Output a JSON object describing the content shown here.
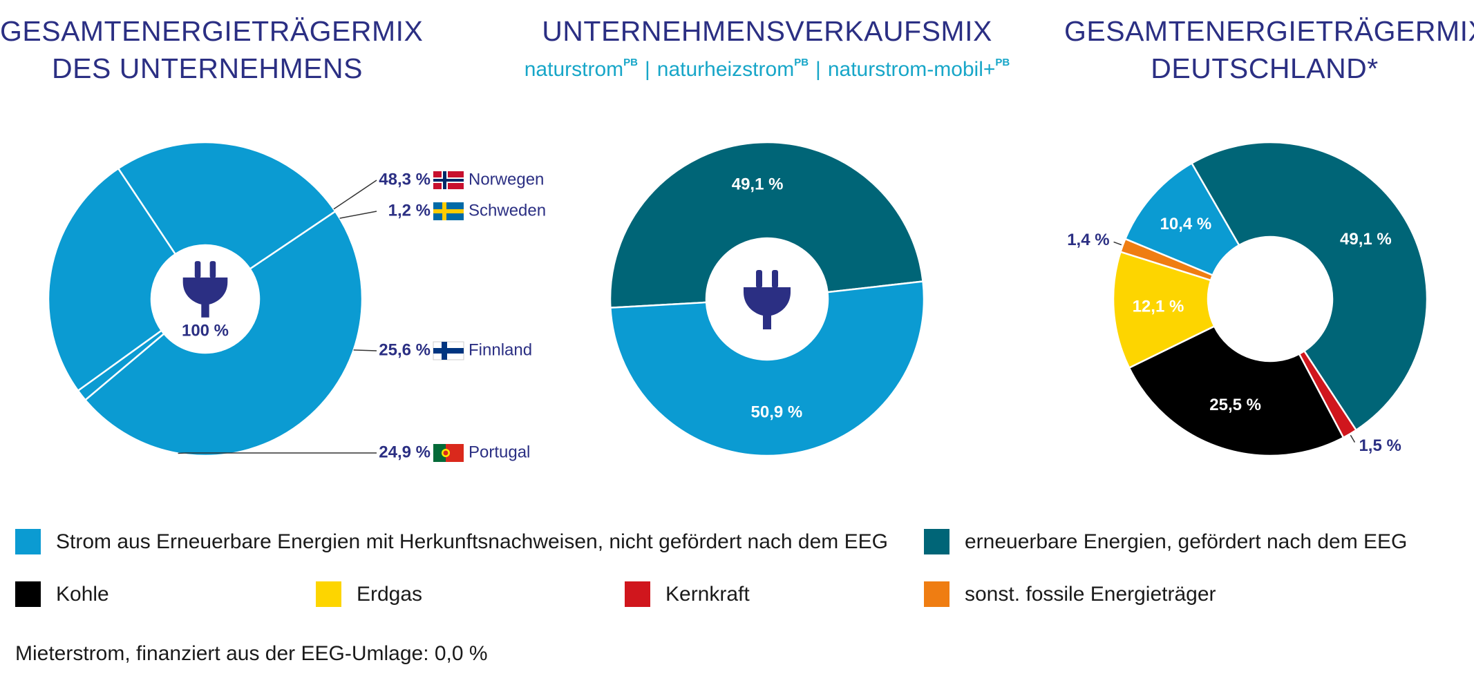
{
  "titles": {
    "left_line1": "GESAMTENERGIETRÄGERMIX",
    "left_line2": "DES UNTERNEHMENS",
    "middle": "UNTERNEHMENSVERKAUFSMIX",
    "middle_sub1": "naturstrom",
    "middle_sub2": "naturheizstrom",
    "middle_sub3": "naturstrom-mobil+",
    "middle_sup": "PB",
    "middle_sep": "|",
    "right_line1": "GESAMTENERGIETRÄGERMIX",
    "right_line2": "DEUTSCHLAND*"
  },
  "colors": {
    "herkunft": "#0b9bd2",
    "eeg": "#006577",
    "kohle": "#000000",
    "erdgas": "#fdd500",
    "kernkraft": "#d0161d",
    "fossil": "#ef7d12",
    "title": "#2b2f83",
    "subtitle": "#17a6c8"
  },
  "chart_data": [
    {
      "type": "pie",
      "title": "GESAMTENERGIETRÄGERMIX DES UNTERNEHMENS",
      "center_label": "100 %",
      "center_icon": "plug-icon",
      "slices": [
        {
          "name": "Norwegen",
          "value": 48.3,
          "label": "48,3 %",
          "color_key": "herkunft",
          "flag": "flag-norway-icon"
        },
        {
          "name": "Schweden",
          "value": 1.2,
          "label": "1,2 %",
          "color_key": "herkunft",
          "flag": "flag-sweden-icon"
        },
        {
          "name": "Finnland",
          "value": 25.6,
          "label": "25,6 %",
          "color_key": "herkunft",
          "flag": "flag-finland-icon"
        },
        {
          "name": "Portugal",
          "value": 24.9,
          "label": "24,9 %",
          "color_key": "herkunft",
          "flag": "flag-portugal-icon"
        }
      ]
    },
    {
      "type": "pie",
      "title": "UNTERNEHMENSVERKAUFSMIX",
      "center_icon": "plug-icon",
      "slices": [
        {
          "name": "erneuerbare Energien, gefördert nach dem EEG",
          "value": 49.1,
          "label": "49,1 %",
          "color_key": "eeg"
        },
        {
          "name": "Strom aus Erneuerbare Energien mit Herkunftsnachweisen, nicht gefördert nach dem EEG",
          "value": 50.9,
          "label": "50,9 %",
          "color_key": "herkunft"
        }
      ]
    },
    {
      "type": "pie",
      "title": "GESAMTENERGIETRÄGERMIX DEUTSCHLAND*",
      "slices": [
        {
          "name": "erneuerbare Energien, gefördert nach dem EEG",
          "value": 49.1,
          "label": "49,1 %",
          "color_key": "eeg"
        },
        {
          "name": "Kernkraft",
          "value": 1.5,
          "label": "1,5 %",
          "color_key": "kernkraft"
        },
        {
          "name": "Kohle",
          "value": 25.5,
          "label": "25,5 %",
          "color_key": "kohle"
        },
        {
          "name": "Erdgas",
          "value": 12.1,
          "label": "12,1 %",
          "color_key": "erdgas"
        },
        {
          "name": "sonst. fossile Energieträger",
          "value": 1.4,
          "label": "1,4 %",
          "color_key": "fossil"
        },
        {
          "name": "Strom aus Erneuerbare Energien mit Herkunftsnachweisen, nicht gefördert nach dem EEG",
          "value": 10.4,
          "label": "10,4 %",
          "color_key": "herkunft"
        }
      ]
    }
  ],
  "legend": [
    {
      "label": "Strom aus Erneuerbare Energien mit Herkunftsnachweisen, nicht gefördert nach dem EEG",
      "color_key": "herkunft"
    },
    {
      "label": "erneuerbare Energien, gefördert nach dem EEG",
      "color_key": "eeg"
    },
    {
      "label": "Kohle",
      "color_key": "kohle"
    },
    {
      "label": "Erdgas",
      "color_key": "erdgas"
    },
    {
      "label": "Kernkraft",
      "color_key": "kernkraft"
    },
    {
      "label": "sonst. fossile Energieträger",
      "color_key": "fossil"
    }
  ],
  "footnote": "Mieterstrom, finanziert aus der EEG-Umlage: 0,0 %"
}
